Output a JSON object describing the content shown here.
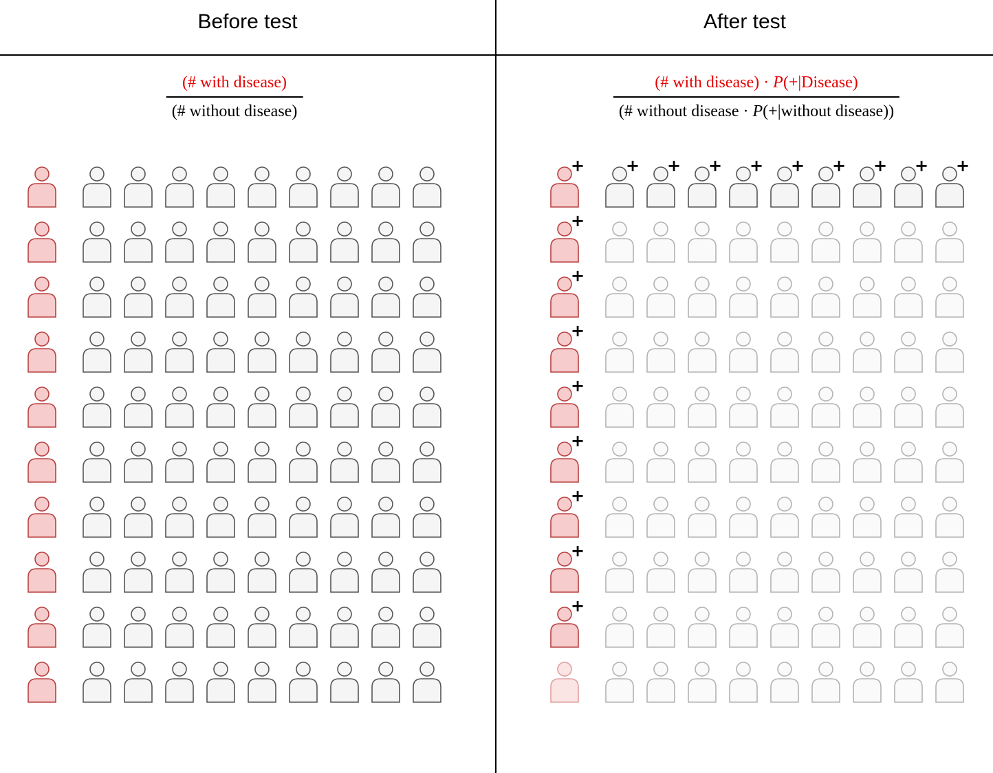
{
  "titles": {
    "left": "Before test",
    "right": "After test"
  },
  "formulas": {
    "left": {
      "numerator": "(# with disease)",
      "denominator": "(#  without disease)"
    },
    "right": {
      "numerator_pre": "(# with disease) · ",
      "numerator_P": "P",
      "numerator_post": "(+|Disease)",
      "denominator_pre": "(#  without disease · ",
      "denominator_P": "P",
      "denominator_post": "(+|without disease))"
    }
  },
  "grid": {
    "rows": 10,
    "columns_healthy": 9,
    "columns_diseased": 1,
    "plus_symbol": "+"
  },
  "after_test": {
    "diseased_testing_positive": 9,
    "diseased_testing_negative": 1,
    "healthy_testing_positive": 9
  },
  "colors": {
    "diseased_stroke": "#b84040",
    "diseased_fill": "#f6cccc",
    "healthy_stroke": "#555555",
    "healthy_fill": "#f5f5f5",
    "faded_stroke": "#b3b3b3",
    "faded_fill": "#fafafa",
    "faded_diseased_stroke": "#e0a0a0",
    "faded_diseased_fill": "#fbe4e4",
    "accent_red": "#e60000"
  }
}
